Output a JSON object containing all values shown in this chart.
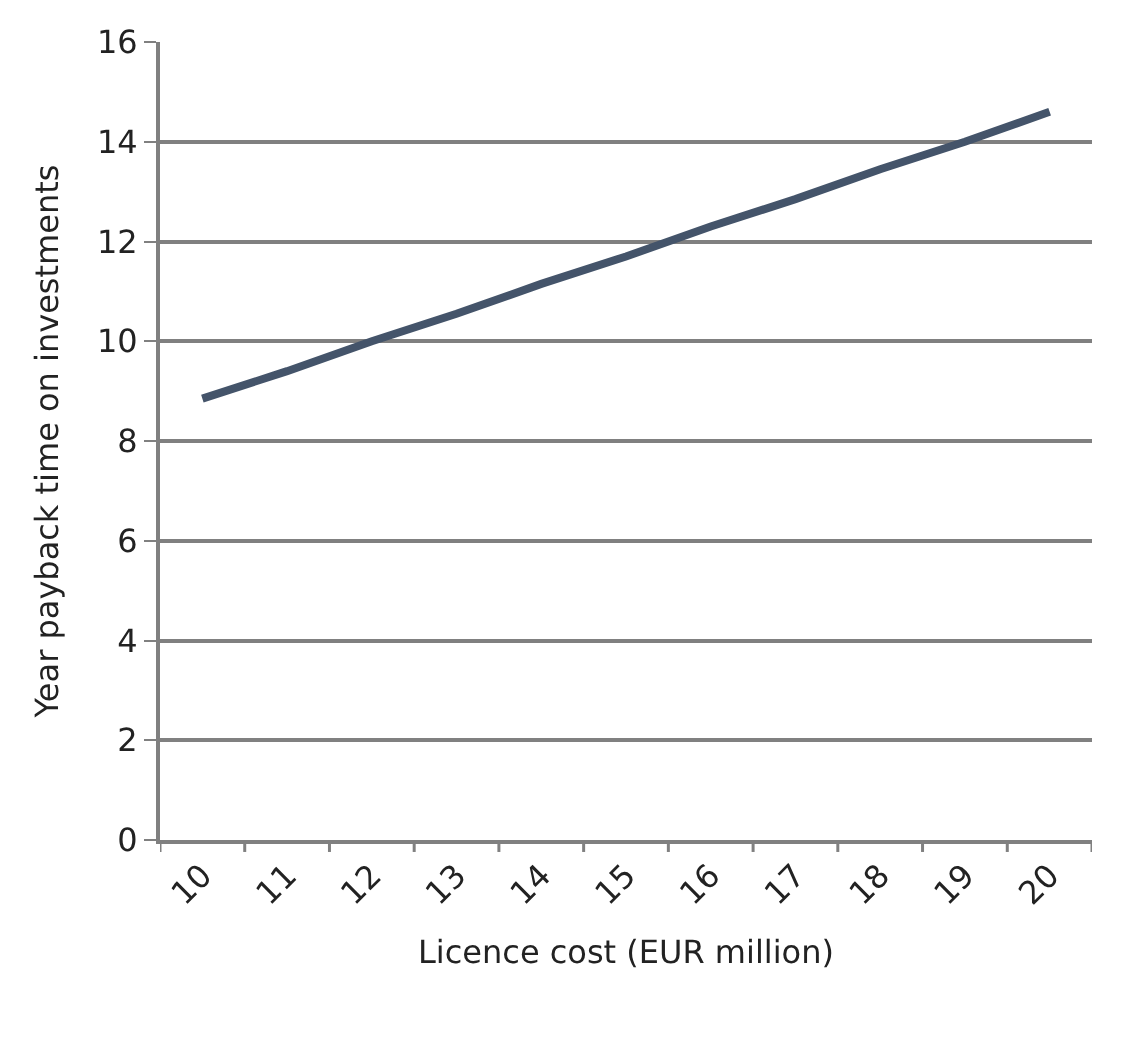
{
  "chart_data": {
    "type": "line",
    "xlabel": "Licence cost (EUR million)",
    "ylabel": "Year payback time on investments",
    "categories": [
      "10",
      "11",
      "12",
      "13",
      "14",
      "15",
      "16",
      "17",
      "18",
      "19",
      "20"
    ],
    "series": [
      {
        "color": "#44546a",
        "values": [
          8.85,
          9.4,
          10.0,
          10.55,
          11.15,
          11.7,
          12.3,
          12.85,
          13.45,
          14.0,
          14.6
        ]
      }
    ],
    "ylim": [
      0,
      16
    ],
    "yticks": [
      0,
      2,
      4,
      6,
      8,
      10,
      12,
      14,
      16
    ],
    "grid": "y",
    "marker": "none",
    "line_style": "solid"
  }
}
